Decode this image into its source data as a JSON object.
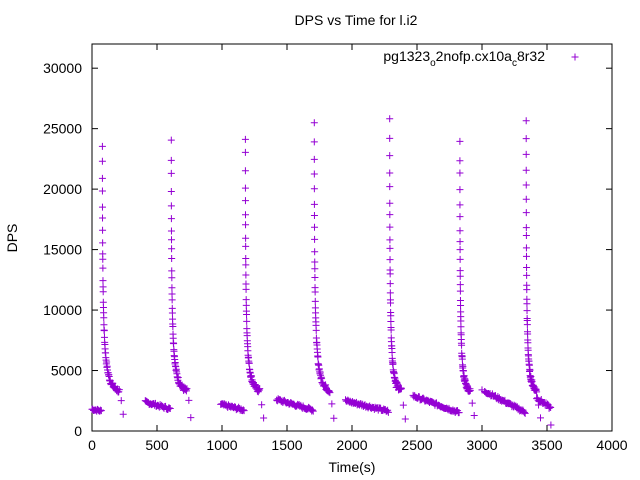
{
  "chart_data": {
    "type": "scatter",
    "title": "DPS vs Time for l.i2",
    "xlabel": "Time(s)",
    "ylabel": "DPS",
    "xlim": [
      0,
      4000
    ],
    "ylim": [
      0,
      32000
    ],
    "xticks": [
      0,
      500,
      1000,
      1500,
      2000,
      2500,
      3000,
      3500,
      4000
    ],
    "yticks": [
      0,
      5000,
      10000,
      15000,
      20000,
      25000,
      30000
    ],
    "grid": false,
    "legend_position": "top-right",
    "marker": "+",
    "color": "#9400d3",
    "legend": {
      "main": "pg1323",
      "sub1": "o",
      "mid": "2nofp.cx10a",
      "sub2": "c",
      "tail": "8r32"
    },
    "bursts": [
      {
        "start": 80,
        "peak": 23700,
        "end": 210,
        "ramp": [
          1900,
          2300
        ],
        "ramp_start": 200
      },
      {
        "start": 610,
        "peak": 23900,
        "end": 730,
        "ramp": [
          1800,
          2400
        ],
        "ramp_start": 410
      },
      {
        "start": 1180,
        "peak": 24300,
        "end": 1290,
        "ramp": [
          1700,
          2200
        ],
        "ramp_start": 990
      },
      {
        "start": 1710,
        "peak": 25500,
        "end": 1830,
        "ramp": [
          1700,
          2600
        ],
        "ramp_start": 1420
      },
      {
        "start": 2290,
        "peak": 25700,
        "end": 2380,
        "ramp": [
          1600,
          2500
        ],
        "ramp_start": 1950
      },
      {
        "start": 2830,
        "peak": 23900,
        "end": 2910,
        "ramp": [
          1500,
          2900
        ],
        "ramp_start": 2470
      },
      {
        "start": 3340,
        "peak": 25800,
        "end": 3420,
        "ramp": [
          1500,
          3300
        ],
        "ramp_start": 3020
      }
    ],
    "tail_points": [
      {
        "x": 3530,
        "y": 500
      },
      {
        "x": 3000,
        "y": 3400
      },
      {
        "x": 2340,
        "y": 3600
      }
    ]
  }
}
